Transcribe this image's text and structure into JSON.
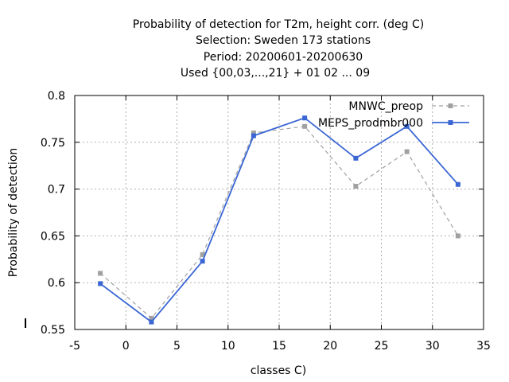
{
  "chart_data": {
    "type": "line",
    "title_lines": [
      "Probability of detection  for T2m, height corr. (deg C)",
      "Selection: Sweden    173 stations",
      "Period: 20200601-20200630",
      "Used {00,03,...,21} + 01 02 ... 09"
    ],
    "xlabel": "classes C)",
    "ylabel": "Probability of detection",
    "xlim": [
      -5,
      35
    ],
    "ylim": [
      0.55,
      0.8
    ],
    "xticks": [
      -5,
      0,
      5,
      10,
      15,
      20,
      25,
      30,
      35
    ],
    "xtick_labels": [
      "-5",
      "0",
      "5",
      "10",
      "15",
      "20",
      "25",
      "30",
      "35"
    ],
    "yticks": [
      0.55,
      0.6,
      0.65,
      0.7,
      0.75,
      0.8
    ],
    "ytick_labels": [
      "0.55",
      "0.6",
      "0.65",
      "0.7",
      "0.75",
      "0.8"
    ],
    "grid": true,
    "legend_position": "top-right",
    "series": [
      {
        "name": "MNWC_preop",
        "color": "#a0a0a0",
        "dashed": true,
        "x": [
          -2.5,
          2.5,
          7.5,
          12.5,
          17.5,
          22.5,
          27.5,
          32.5
        ],
        "y": [
          0.61,
          0.562,
          0.63,
          0.76,
          0.767,
          0.703,
          0.74,
          0.65
        ]
      },
      {
        "name": "MEPS_prodmbr000",
        "color": "#3a66d4",
        "dashed": false,
        "x": [
          -2.5,
          2.5,
          7.5,
          12.5,
          17.5,
          22.5,
          27.5,
          32.5
        ],
        "y": [
          0.599,
          0.558,
          0.623,
          0.757,
          0.776,
          0.733,
          0.767,
          0.705
        ]
      }
    ]
  }
}
